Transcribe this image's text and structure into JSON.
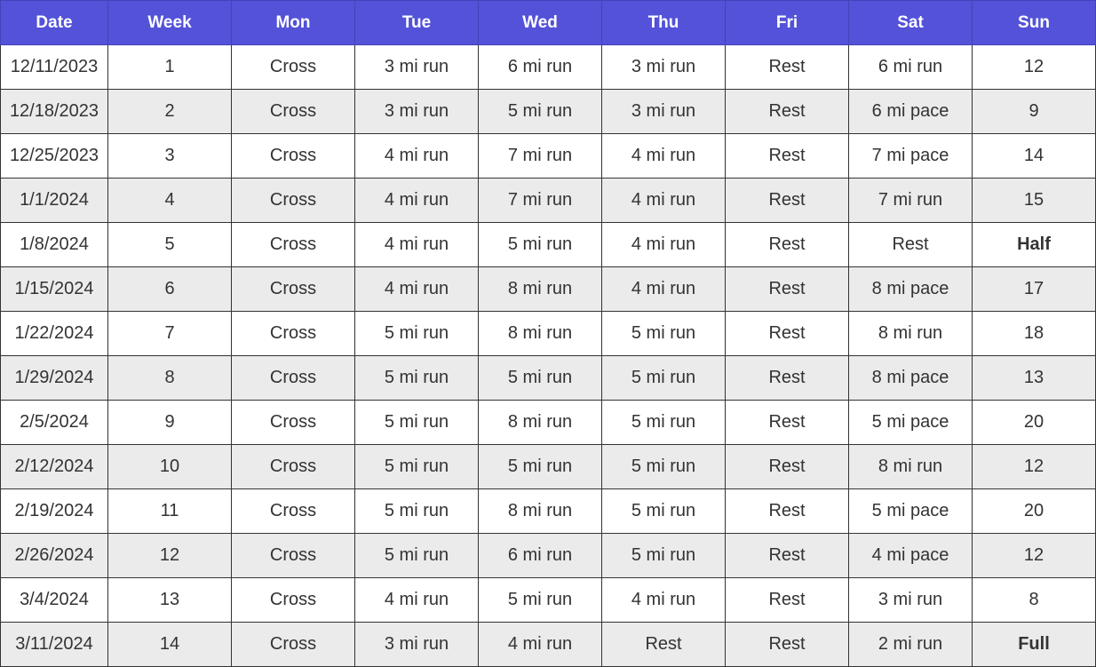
{
  "table": {
    "headers": [
      "Date",
      "Week",
      "Mon",
      "Tue",
      "Wed",
      "Thu",
      "Fri",
      "Sat",
      "Sun"
    ],
    "rows": [
      [
        "12/11/2023",
        "1",
        "Cross",
        "3 mi run",
        "6 mi run",
        "3 mi run",
        "Rest",
        "6 mi run",
        "12"
      ],
      [
        "12/18/2023",
        "2",
        "Cross",
        "3 mi run",
        "5 mi run",
        "3 mi run",
        "Rest",
        "6 mi pace",
        "9"
      ],
      [
        "12/25/2023",
        "3",
        "Cross",
        "4 mi run",
        "7 mi run",
        "4 mi run",
        "Rest",
        "7 mi pace",
        "14"
      ],
      [
        "1/1/2024",
        "4",
        "Cross",
        "4 mi run",
        "7 mi run",
        "4 mi run",
        "Rest",
        "7 mi run",
        "15"
      ],
      [
        "1/8/2024",
        "5",
        "Cross",
        "4 mi run",
        "5 mi run",
        "4 mi run",
        "Rest",
        "Rest",
        "Half"
      ],
      [
        "1/15/2024",
        "6",
        "Cross",
        "4 mi run",
        "8 mi run",
        "4 mi run",
        "Rest",
        "8 mi pace",
        "17"
      ],
      [
        "1/22/2024",
        "7",
        "Cross",
        "5 mi run",
        "8 mi run",
        "5 mi run",
        "Rest",
        "8 mi run",
        "18"
      ],
      [
        "1/29/2024",
        "8",
        "Cross",
        "5 mi run",
        "5 mi run",
        "5 mi run",
        "Rest",
        "8 mi pace",
        "13"
      ],
      [
        "2/5/2024",
        "9",
        "Cross",
        "5 mi run",
        "8 mi run",
        "5 mi run",
        "Rest",
        "5 mi pace",
        "20"
      ],
      [
        "2/12/2024",
        "10",
        "Cross",
        "5 mi run",
        "5 mi run",
        "5 mi run",
        "Rest",
        "8 mi run",
        "12"
      ],
      [
        "2/19/2024",
        "11",
        "Cross",
        "5 mi run",
        "8 mi run",
        "5 mi run",
        "Rest",
        "5 mi pace",
        "20"
      ],
      [
        "2/26/2024",
        "12",
        "Cross",
        "5 mi run",
        "6 mi run",
        "5 mi run",
        "Rest",
        "4 mi pace",
        "12"
      ],
      [
        "3/4/2024",
        "13",
        "Cross",
        "4 mi run",
        "5 mi run",
        "4 mi run",
        "Rest",
        "3 mi run",
        "8"
      ],
      [
        "3/11/2024",
        "14",
        "Cross",
        "3 mi run",
        "4 mi run",
        "Rest",
        "Rest",
        "2 mi run",
        "Full"
      ]
    ],
    "bold_race_values": [
      "Half",
      "Full"
    ]
  },
  "colors": {
    "header_bg": "#5352d8",
    "header_text": "#ffffff",
    "row_alt_bg": "#ebebeb",
    "row_bg": "#ffffff",
    "cell_text": "#333333"
  }
}
